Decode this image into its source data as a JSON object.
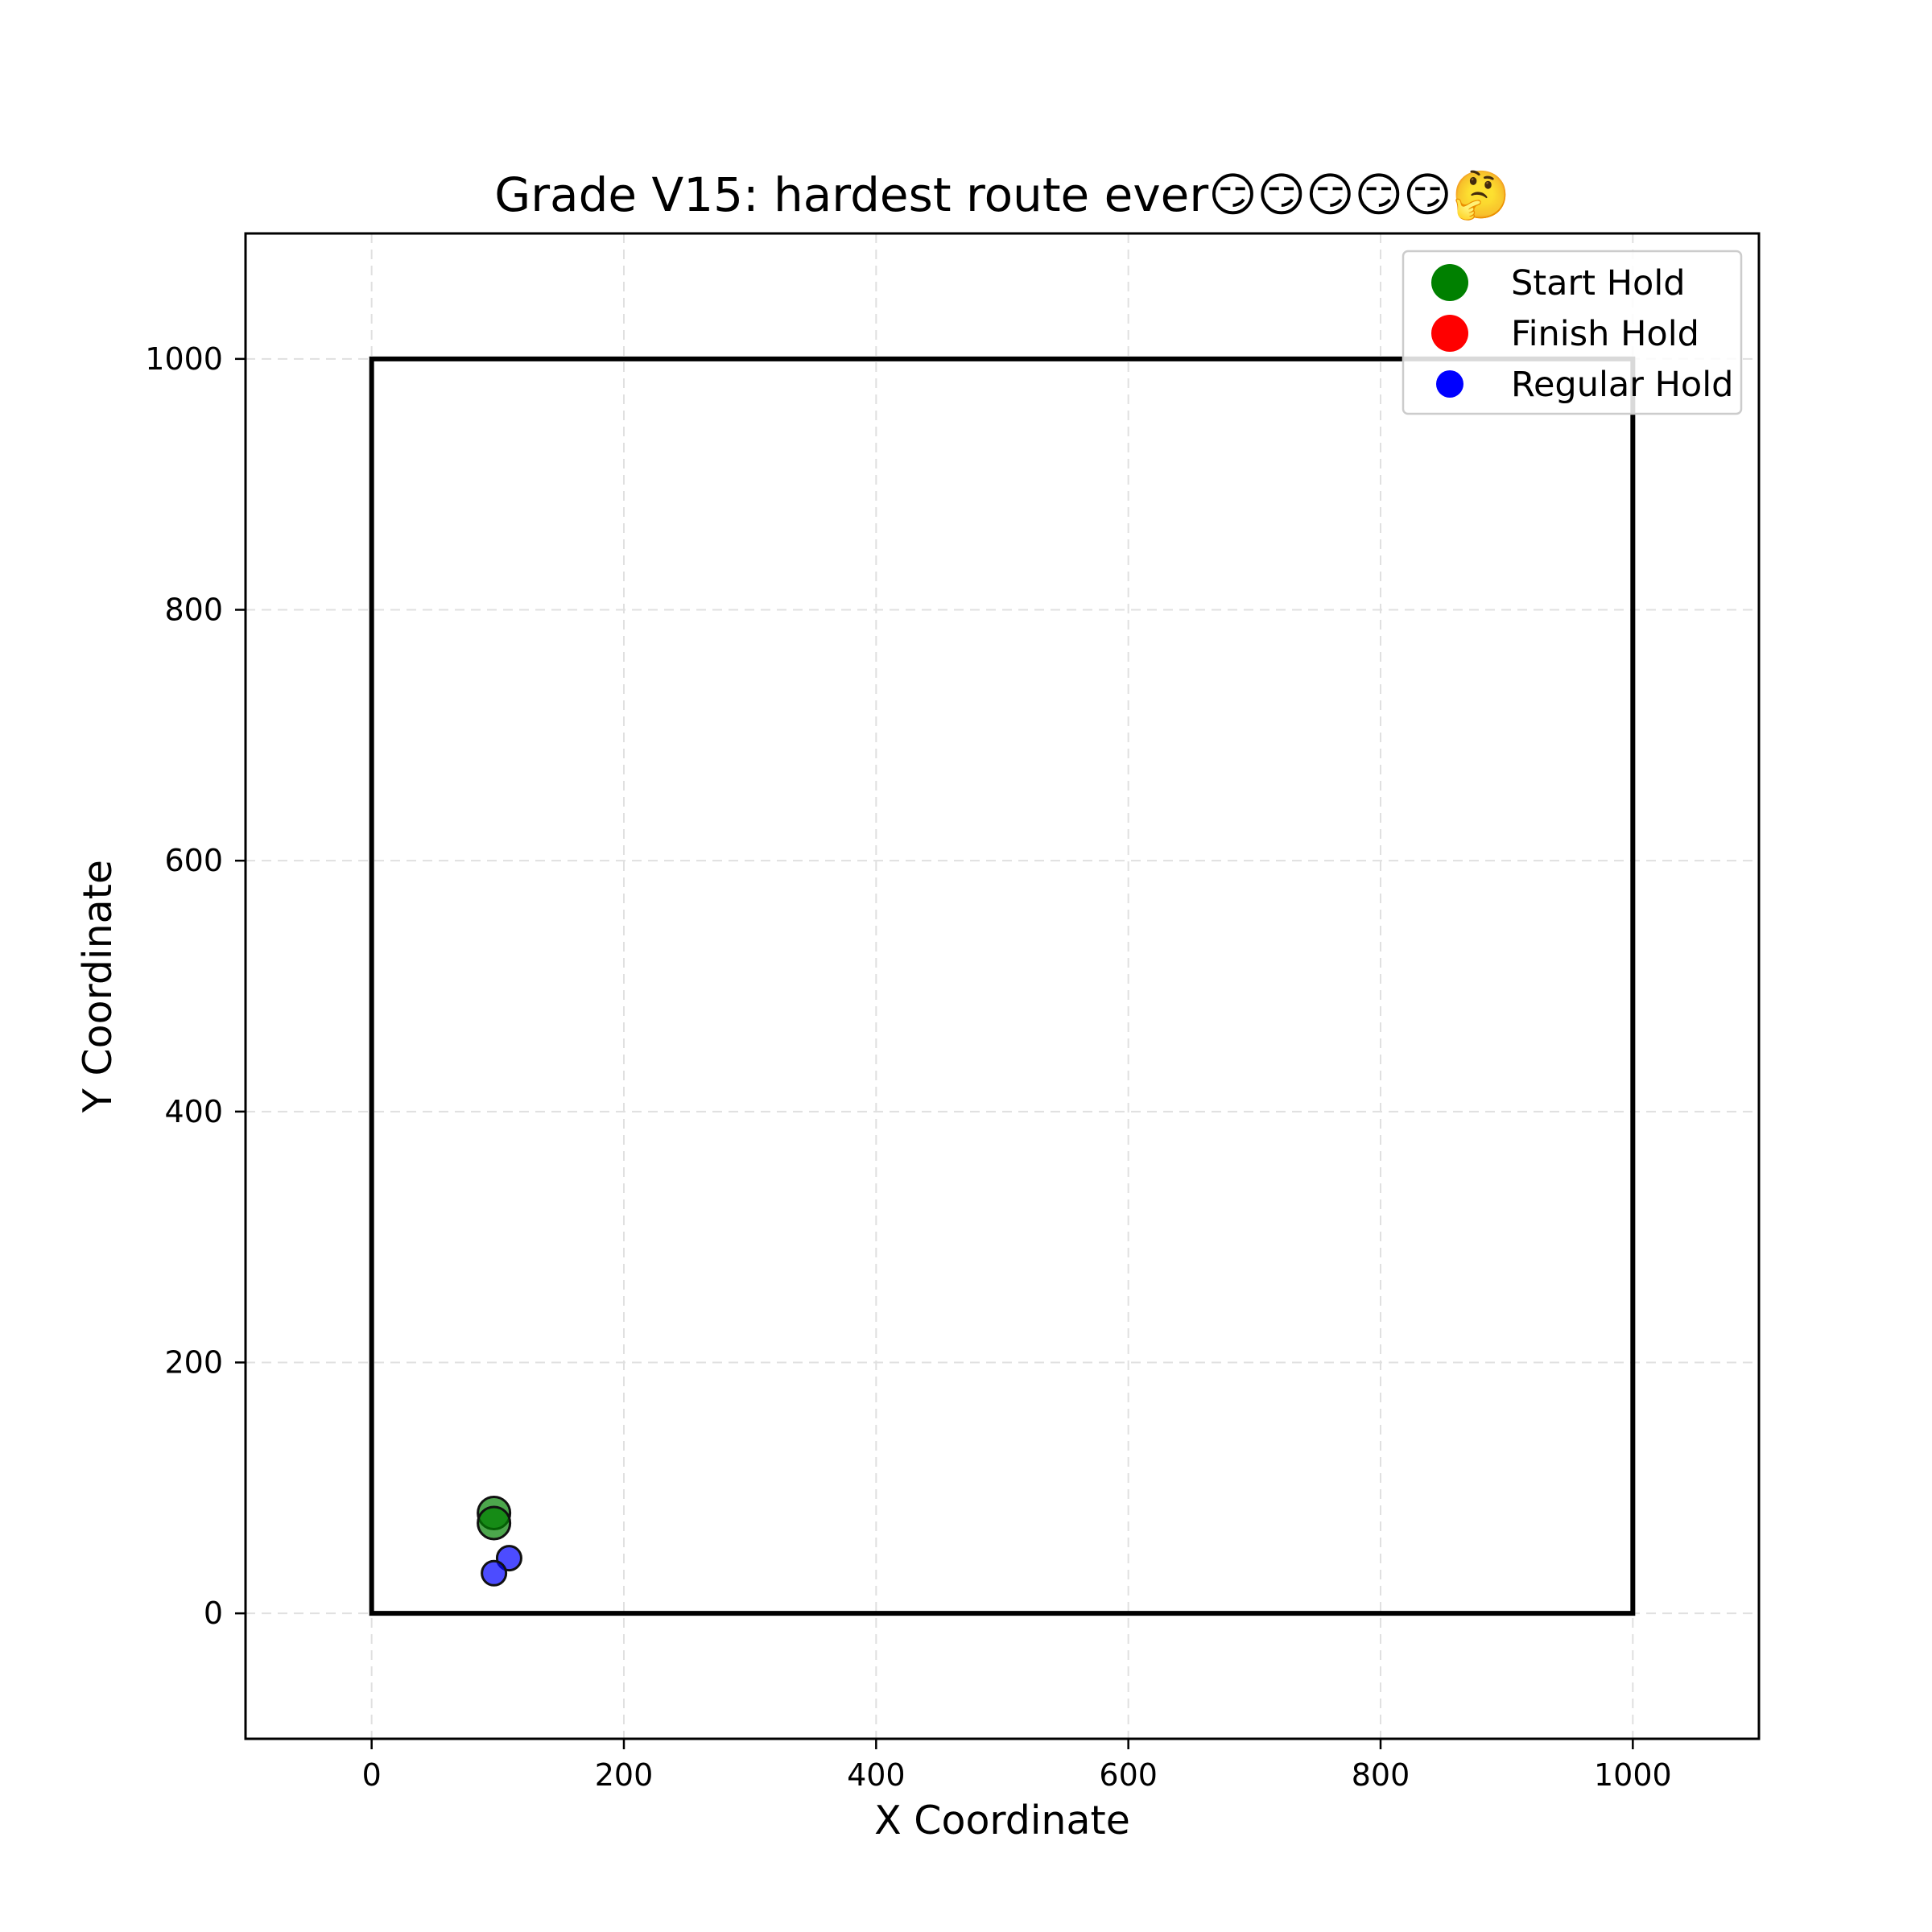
{
  "chart_data": {
    "type": "scatter",
    "title": "Grade V15: hardest route ever😏😏😏😏😏🤔",
    "xlabel": "X Coordinate",
    "ylabel": "Y Coordinate",
    "xlim": [
      -100,
      1100
    ],
    "ylim": [
      -100,
      1100
    ],
    "xticks": [
      0,
      200,
      400,
      600,
      800,
      1000
    ],
    "yticks": [
      0,
      200,
      400,
      600,
      800,
      1000
    ],
    "grid": true,
    "legend_position": "top-right",
    "wall_boundary": [
      [
        0,
        0
      ],
      [
        1000,
        0
      ],
      [
        1000,
        1000
      ],
      [
        0,
        1000
      ]
    ],
    "series": [
      {
        "name": "Start Hold",
        "color": "#008000",
        "points": [
          [
            97,
            80
          ],
          [
            97,
            72
          ]
        ]
      },
      {
        "name": "Finish Hold",
        "color": "#ff0000",
        "points": []
      },
      {
        "name": "Regular Hold",
        "color": "#0000ff",
        "points": [
          [
            109,
            44
          ],
          [
            97,
            32
          ]
        ]
      }
    ]
  }
}
